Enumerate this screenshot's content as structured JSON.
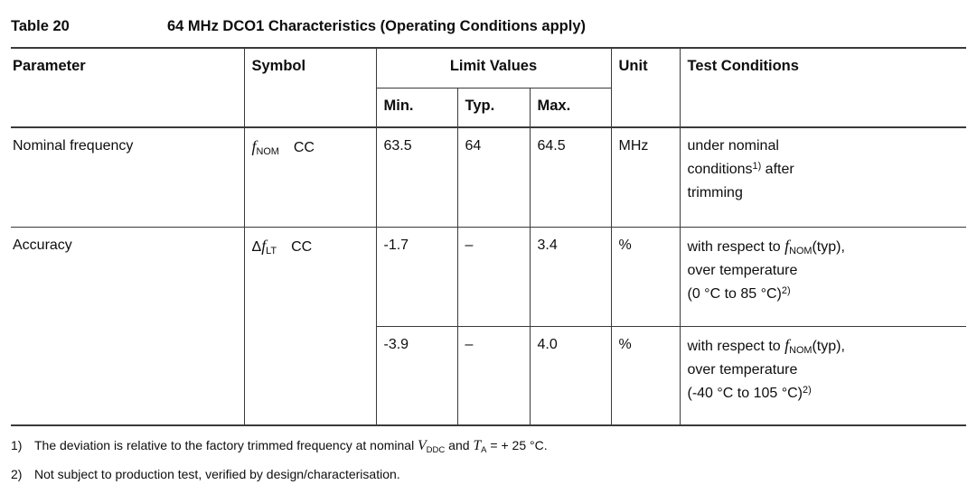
{
  "caption": {
    "label": "Table 20",
    "title": "64 MHz DCO1 Characteristics (Operating Conditions apply)"
  },
  "header": {
    "parameter": "Parameter",
    "symbol": "Symbol",
    "limit_values": "Limit Values",
    "min": "Min.",
    "typ": "Typ.",
    "max": "Max.",
    "unit": "Unit",
    "test_conditions": "Test Conditions"
  },
  "rows": {
    "nominal": {
      "parameter": "Nominal frequency",
      "symbol": "{sym:f|NOM}",
      "symbol_qualifier": "CC",
      "min": "63.5",
      "typ": "64",
      "max": "64.5",
      "unit": "MHz",
      "test_conditions": [
        "under nominal",
        "conditions{sup:1)} after",
        "trimming"
      ]
    },
    "accuracy": {
      "parameter": "Accuracy",
      "symbol": "{sym:Δf|LT}",
      "symbol_qualifier": "CC",
      "sub_rows": [
        {
          "min": "-1.7",
          "typ": "–",
          "max": "3.4",
          "unit": "%",
          "test_conditions": [
            "with respect to {sym:f|NOM}(typ),",
            "over temperature",
            "(0 °C to 85 °C){sup:2)}"
          ]
        },
        {
          "min": "-3.9",
          "typ": "–",
          "max": "4.0",
          "unit": "%",
          "test_conditions": [
            "with respect to {sym:f|NOM}(typ),",
            "over temperature",
            "(-40 °C to 105 °C){sup:2)}"
          ]
        }
      ]
    }
  },
  "footnotes": [
    {
      "marker": "1)",
      "text": "The deviation is relative to the factory trimmed frequency at nominal {sym:V|DDC} and {sym:T|A} = + 25 °C."
    },
    {
      "marker": "2)",
      "text": "Not subject to production test, verified by design/characterisation."
    }
  ],
  "colors": {
    "border": "#3a3a3a",
    "text": "#0e0e0e",
    "background": "#ffffff"
  }
}
